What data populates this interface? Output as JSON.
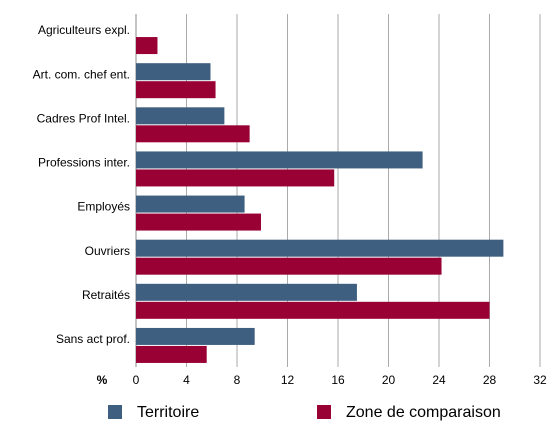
{
  "chart_data": {
    "type": "barh",
    "categories": [
      "Agriculteurs expl.",
      "Art. com. chef ent.",
      "Cadres Prof Intel.",
      "Professions inter.",
      "Employés",
      "Ouvriers",
      "Retraités",
      "Sans act prof."
    ],
    "series": [
      {
        "name": "Territoire",
        "color": "#3f5f80",
        "values": [
          0,
          5.9,
          7.0,
          22.7,
          8.6,
          29.1,
          17.5,
          9.4
        ]
      },
      {
        "name": "Zone de comparaison",
        "color": "#990033",
        "values": [
          1.7,
          6.3,
          9.0,
          15.7,
          9.9,
          24.2,
          28.0,
          5.6
        ]
      }
    ],
    "xlabel": "%",
    "xlim": [
      0,
      32
    ],
    "xticks": [
      0,
      4,
      8,
      12,
      16,
      20,
      24,
      28,
      32
    ],
    "grid": true
  }
}
